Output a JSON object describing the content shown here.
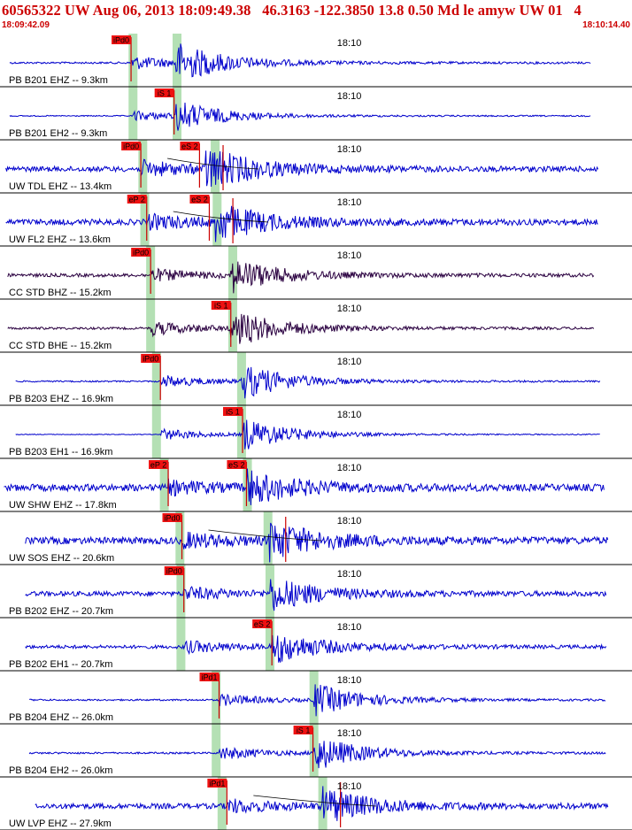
{
  "header": {
    "title": "60565322 UW Aug 06, 2013 18:09:49.38   46.3163 -122.3850 13.8 0.50 Md le amyw UW 01   4",
    "start_time": "18:09:42.09",
    "end_time": "18:10:14.40"
  },
  "colors": {
    "background": "#ffffff",
    "header_text": "#cc0000",
    "trace_blue": "#0000cc",
    "trace_purple": "#2a0040",
    "pick_label_bg": "#ee1111",
    "pick_line": "#cc0000",
    "prediction_band": "#b4e0b4",
    "divider": "#000000"
  },
  "chart_data": {
    "type": "line",
    "description_type": "seismogram record section",
    "time_axis": {
      "start": "18:09:42.09",
      "end": "18:10:14.40",
      "minute_tick": "18:10",
      "minute_tick_seconds": 17.91
    },
    "traces": [
      {
        "name": "PB B201 EHZ -- 9.3km",
        "color": "#0000cc",
        "pick": {
          "label": "iPd0",
          "t": 6.7
        },
        "band_t": 6.8,
        "band2_t": 9.05,
        "extra_picks": [],
        "arrivals": [
          6.7,
          9.0
        ],
        "amp": 0.8,
        "noise": 0.05,
        "taper_start": 0.5,
        "taper_end": 30.2,
        "has_marks": false
      },
      {
        "name": "PB B201 EH2 -- 9.3km",
        "color": "#0000cc",
        "pick": {
          "label": "iS 1",
          "t": 8.9
        },
        "band_t": 6.8,
        "band2_t": 9.05,
        "extra_picks": [],
        "arrivals": [
          6.8,
          9.0
        ],
        "amp": 0.6,
        "noise": 0.04,
        "taper_start": 0.5,
        "taper_end": 30.2,
        "has_marks": false
      },
      {
        "name": "UW TDL EHZ -- 13.4km",
        "color": "#0000cc",
        "pick": {
          "label": "iPd0",
          "t": 7.2
        },
        "band_t": 7.3,
        "band2_t": 11.0,
        "extra_picks": [
          {
            "label": "eS 2",
            "t": 10.2
          }
        ],
        "arrivals": [
          7.2,
          10.5
        ],
        "amp": 0.9,
        "noise": 0.12,
        "taper_start": 0.3,
        "taper_end": 30.6,
        "has_marks": true
      },
      {
        "name": "UW FL2 EHZ -- 13.6km",
        "color": "#0000cc",
        "pick": {
          "label": "eP 2",
          "t": 7.5
        },
        "band_t": 7.4,
        "band2_t": 11.1,
        "extra_picks": [
          {
            "label": "eS 2",
            "t": 10.7
          }
        ],
        "arrivals": [
          7.5,
          11.0
        ],
        "amp": 0.8,
        "noise": 0.15,
        "taper_start": 0.3,
        "taper_end": 30.6,
        "has_marks": true
      },
      {
        "name": "CC STD BHZ -- 15.2km",
        "color": "#2a0040",
        "pick": {
          "label": "iPd0",
          "t": 7.7
        },
        "band_t": 7.7,
        "band2_t": 11.9,
        "extra_picks": [],
        "arrivals": [
          7.7,
          11.8
        ],
        "amp": 0.7,
        "noise": 0.1,
        "taper_start": 0.4,
        "taper_end": 30.4,
        "has_marks": false
      },
      {
        "name": "CC STD BHE -- 15.2km",
        "color": "#2a0040",
        "pick": {
          "label": "iS 1",
          "t": 11.8
        },
        "band_t": 7.7,
        "band2_t": 11.9,
        "extra_picks": [],
        "arrivals": [
          7.7,
          11.8
        ],
        "amp": 0.8,
        "noise": 0.06,
        "taper_start": 0.4,
        "taper_end": 30.4,
        "has_marks": false
      },
      {
        "name": "PB B203 EHZ -- 16.9km",
        "color": "#0000cc",
        "pick": {
          "label": "iPd0",
          "t": 8.2
        },
        "band_t": 8.0,
        "band2_t": 12.35,
        "extra_picks": [],
        "arrivals": [
          8.2,
          12.3
        ],
        "amp": 0.75,
        "noise": 0.04,
        "taper_start": 0.8,
        "taper_end": 30.7,
        "has_marks": false
      },
      {
        "name": "PB B203 EH1 -- 16.9km",
        "color": "#0000cc",
        "pick": {
          "label": "iS 1",
          "t": 12.4
        },
        "band_t": 8.0,
        "band2_t": 12.35,
        "extra_picks": [],
        "arrivals": [
          8.2,
          12.4
        ],
        "amp": 0.7,
        "noise": 0.02,
        "taper_start": 0.8,
        "taper_end": 30.7,
        "has_marks": false
      },
      {
        "name": "UW SHW EHZ -- 17.8km",
        "color": "#0000cc",
        "pick": {
          "label": "eP 2",
          "t": 8.6
        },
        "band_t": 8.4,
        "band2_t": 12.65,
        "extra_picks": [
          {
            "label": "eS 2",
            "t": 12.6
          }
        ],
        "arrivals": [
          8.6,
          12.6
        ],
        "amp": 0.7,
        "noise": 0.2,
        "taper_start": 0.2,
        "taper_end": 30.9,
        "has_marks": false
      },
      {
        "name": "UW SOS EHZ -- 20.6km",
        "color": "#0000cc",
        "pick": {
          "label": "iPd0",
          "t": 9.3
        },
        "band_t": 9.2,
        "band2_t": 13.7,
        "extra_picks": [],
        "arrivals": [
          9.3,
          13.7
        ],
        "amp": 0.8,
        "noise": 0.18,
        "taper_start": 1.3,
        "taper_end": 31.1,
        "has_marks": true
      },
      {
        "name": "PB B202 EHZ -- 20.7km",
        "color": "#0000cc",
        "pick": {
          "label": "iPd0",
          "t": 9.4
        },
        "band_t": 9.25,
        "band2_t": 13.8,
        "extra_picks": [],
        "arrivals": [
          9.4,
          13.8
        ],
        "amp": 0.7,
        "noise": 0.14,
        "taper_start": 1.3,
        "taper_end": 31.0,
        "has_marks": false
      },
      {
        "name": "PB B202 EH1 -- 20.7km",
        "color": "#0000cc",
        "pick": {
          "label": "eS 2",
          "t": 13.9
        },
        "band_t": 9.25,
        "band2_t": 13.8,
        "extra_picks": [],
        "arrivals": [
          9.4,
          13.9
        ],
        "amp": 0.7,
        "noise": 0.1,
        "taper_start": 1.3,
        "taper_end": 31.0,
        "has_marks": false
      },
      {
        "name": "PB B204 EHZ -- 26.0km",
        "color": "#0000cc",
        "pick": {
          "label": "iPd1",
          "t": 11.2
        },
        "band_t": 11.05,
        "band2_t": 16.05,
        "extra_picks": [],
        "arrivals": [
          11.2,
          16.0
        ],
        "amp": 0.7,
        "noise": 0.05,
        "taper_start": 1.5,
        "taper_end": 31.0,
        "has_marks": false
      },
      {
        "name": "PB B204 EH2 -- 26.0km",
        "color": "#0000cc",
        "pick": {
          "label": "iS 1",
          "t": 16.0
        },
        "band_t": 11.05,
        "band2_t": 16.05,
        "extra_picks": [],
        "arrivals": [
          11.2,
          16.0
        ],
        "amp": 0.75,
        "noise": 0.05,
        "taper_start": 1.5,
        "taper_end": 31.0,
        "has_marks": false
      },
      {
        "name": "UW LVP EHZ -- 27.9km",
        "color": "#0000cc",
        "pick": {
          "label": "iPd1",
          "t": 11.6
        },
        "band_t": 11.35,
        "band2_t": 16.5,
        "extra_picks": [],
        "arrivals": [
          11.6,
          16.5
        ],
        "amp": 0.75,
        "noise": 0.15,
        "taper_start": 1.8,
        "taper_end": 31.1,
        "has_marks": true
      }
    ]
  }
}
